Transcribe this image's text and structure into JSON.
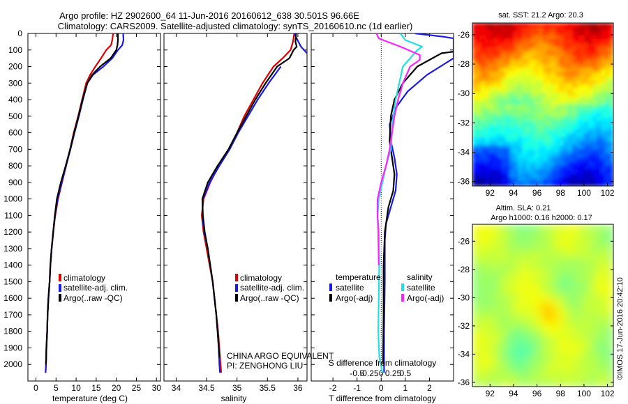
{
  "header": {
    "line1": "Argo profile: HZ 2902600_64 11-Jun-2016 20160612_638 30.501S 96.66E",
    "line2": "Climatology: CARS2009. Satellite-adjusted climatology: synTS_20160610.nc (1d earlier)"
  },
  "credit": "©IMOS 17-Jun-2016 20:42:10",
  "annotations": {
    "program": "CHINA ARGO EQUIVALENT",
    "pi": "PI: ZENGHONG LIU"
  },
  "colors": {
    "climatology": "#e00000",
    "satellite": "#1a1ae6",
    "argo": "#000000",
    "sat_salinity": "#22e0e0",
    "argo_salinity": "#ff22ff"
  },
  "chart_data": [
    {
      "type": "line",
      "panel": "temperature",
      "xlabel": "temperature (deg C)",
      "ylabel": "",
      "xlim": [
        -2,
        31
      ],
      "ylim": [
        2100,
        0
      ],
      "xticks": [
        0,
        5,
        10,
        15,
        20,
        25,
        30
      ],
      "yticks": [
        0,
        100,
        200,
        300,
        400,
        500,
        600,
        700,
        800,
        900,
        1000,
        1100,
        1200,
        1300,
        1400,
        1500,
        1600,
        1700,
        1800,
        1900,
        2000
      ],
      "legend": [
        "climatology",
        "satellite-adj. clim.",
        "Argo(..raw -QC)"
      ],
      "series": [
        {
          "name": "climatology",
          "color": "#e00000",
          "points": [
            [
              19.2,
              0
            ],
            [
              19.0,
              40
            ],
            [
              18.7,
              70
            ],
            [
              17.5,
              100
            ],
            [
              16.2,
              150
            ],
            [
              14.8,
              200
            ],
            [
              13.5,
              250
            ],
            [
              12.5,
              300
            ],
            [
              11.5,
              400
            ],
            [
              10.5,
              500
            ],
            [
              9.4,
              600
            ],
            [
              8.5,
              700
            ],
            [
              7.5,
              800
            ],
            [
              6.5,
              900
            ],
            [
              5.5,
              1000
            ],
            [
              4.8,
              1100
            ],
            [
              4.3,
              1200
            ],
            [
              3.9,
              1300
            ],
            [
              3.6,
              1400
            ],
            [
              3.4,
              1500
            ],
            [
              3.1,
              1600
            ],
            [
              2.9,
              1700
            ],
            [
              2.8,
              1800
            ],
            [
              2.6,
              1900
            ],
            [
              2.5,
              2000
            ],
            [
              2.4,
              2050
            ]
          ]
        },
        {
          "name": "satellite-adj. clim.",
          "color": "#1a1ae6",
          "points": [
            [
              21.7,
              0
            ],
            [
              21.8,
              40
            ],
            [
              21.5,
              70
            ],
            [
              20.4,
              100
            ],
            [
              19.0,
              150
            ],
            [
              16.8,
              200
            ],
            [
              14.2,
              250
            ],
            [
              12.8,
              300
            ],
            [
              11.7,
              400
            ],
            [
              10.7,
              500
            ],
            [
              9.6,
              600
            ],
            [
              8.6,
              700
            ],
            [
              7.5,
              800
            ],
            [
              6.4,
              900
            ],
            [
              5.4,
              1000
            ],
            [
              4.7,
              1100
            ],
            [
              4.3,
              1200
            ],
            [
              3.9,
              1300
            ],
            [
              3.6,
              1400
            ],
            [
              3.4,
              1500
            ],
            [
              3.1,
              1600
            ],
            [
              2.9,
              1700
            ],
            [
              2.8,
              1800
            ],
            [
              2.6,
              1900
            ],
            [
              2.5,
              2000
            ],
            [
              2.4,
              2050
            ]
          ]
        },
        {
          "name": "Argo(..raw -QC)",
          "color": "#000000",
          "points": [
            [
              20.4,
              0
            ],
            [
              20.4,
              40
            ],
            [
              20.3,
              70
            ],
            [
              20.0,
              100
            ],
            [
              18.6,
              150
            ],
            [
              16.0,
              200
            ],
            [
              14.0,
              250
            ],
            [
              12.8,
              300
            ],
            [
              11.6,
              400
            ],
            [
              10.6,
              500
            ],
            [
              9.5,
              600
            ],
            [
              8.5,
              700
            ],
            [
              7.4,
              800
            ],
            [
              6.2,
              900
            ],
            [
              5.2,
              1000
            ],
            [
              4.7,
              1100
            ],
            [
              4.3,
              1200
            ],
            [
              3.9,
              1300
            ],
            [
              3.6,
              1400
            ],
            [
              3.4,
              1500
            ],
            [
              3.1,
              1600
            ],
            [
              2.9,
              1700
            ],
            [
              2.8,
              1800
            ],
            [
              2.6,
              1900
            ],
            [
              2.5,
              2000
            ]
          ]
        }
      ]
    },
    {
      "type": "line",
      "panel": "salinity",
      "xlabel": "salinity",
      "ylabel": "",
      "xlim": [
        33.8,
        36.15
      ],
      "ylim": [
        2100,
        0
      ],
      "xticks": [
        34,
        34.5,
        35,
        35.5,
        36
      ],
      "xticklabels": [
        "34",
        "34.5",
        "35",
        "35.5",
        "36"
      ],
      "legend": [
        "climatology",
        "satellite-adj. clim.",
        "Argo(..raw -QC)"
      ],
      "series": [
        {
          "name": "climatology",
          "color": "#e00000",
          "points": [
            [
              35.94,
              0
            ],
            [
              35.92,
              50
            ],
            [
              35.88,
              100
            ],
            [
              35.75,
              150
            ],
            [
              35.6,
              200
            ],
            [
              35.42,
              300
            ],
            [
              35.27,
              400
            ],
            [
              35.12,
              500
            ],
            [
              35.0,
              600
            ],
            [
              34.87,
              700
            ],
            [
              34.7,
              800
            ],
            [
              34.56,
              900
            ],
            [
              34.45,
              1000
            ],
            [
              34.42,
              1100
            ],
            [
              34.45,
              1200
            ],
            [
              34.5,
              1300
            ],
            [
              34.55,
              1400
            ],
            [
              34.6,
              1500
            ],
            [
              34.63,
              1600
            ],
            [
              34.66,
              1700
            ],
            [
              34.69,
              1800
            ],
            [
              34.71,
              1900
            ],
            [
              34.73,
              2000
            ],
            [
              34.74,
              2050
            ]
          ]
        },
        {
          "name": "satellite-adj. clim.",
          "color": "#1a1ae6",
          "points": [
            [
              35.94,
              0
            ],
            [
              35.98,
              30
            ],
            [
              36.05,
              80
            ],
            [
              36.15,
              120
            ]
          ]
        },
        {
          "name": "satellite-adj. clim.",
          "color": "#1a1ae6",
          "points": [
            [
              35.72,
              200
            ],
            [
              35.52,
              300
            ],
            [
              35.34,
              400
            ],
            [
              35.18,
              500
            ],
            [
              35.02,
              600
            ],
            [
              34.88,
              700
            ],
            [
              34.71,
              800
            ],
            [
              34.55,
              900
            ],
            [
              34.44,
              1000
            ],
            [
              34.43,
              1100
            ],
            [
              34.46,
              1200
            ],
            [
              34.52,
              1300
            ],
            [
              34.56,
              1400
            ],
            [
              34.6,
              1500
            ],
            [
              34.63,
              1600
            ],
            [
              34.66,
              1700
            ],
            [
              34.68,
              1800
            ],
            [
              34.7,
              1900
            ],
            [
              34.71,
              2000
            ],
            [
              34.72,
              2050
            ]
          ]
        },
        {
          "name": "Argo(..raw -QC)",
          "color": "#000000",
          "points": [
            [
              35.97,
              0
            ],
            [
              35.96,
              50
            ],
            [
              35.98,
              80
            ],
            [
              35.93,
              100
            ],
            [
              35.86,
              150
            ],
            [
              35.66,
              200
            ],
            [
              35.47,
              300
            ],
            [
              35.3,
              400
            ],
            [
              35.15,
              500
            ],
            [
              35.0,
              600
            ],
            [
              34.86,
              700
            ],
            [
              34.68,
              800
            ],
            [
              34.52,
              900
            ],
            [
              34.43,
              1000
            ],
            [
              34.44,
              1100
            ],
            [
              34.47,
              1200
            ],
            [
              34.52,
              1300
            ],
            [
              34.56,
              1400
            ],
            [
              34.6,
              1500
            ],
            [
              34.63,
              1600
            ],
            [
              34.66,
              1700
            ],
            [
              34.68,
              1800
            ],
            [
              34.7,
              1900
            ],
            [
              34.71,
              1960
            ]
          ]
        }
      ]
    },
    {
      "type": "line",
      "panel": "difference",
      "xlabel": "T difference from climatology",
      "xlabel2": "S difference from climatology",
      "ylabel": "",
      "xlim": [
        -2.9,
        3.0
      ],
      "ylim": [
        2100,
        0
      ],
      "xticks": [
        -2,
        -1,
        0,
        1,
        2
      ],
      "xticklabels": [
        "-2",
        "-1",
        "0",
        "1",
        "2"
      ],
      "s_ticks": [
        -0.5,
        -0.25,
        0,
        0.25,
        0.5
      ],
      "s_ticklabels": [
        "-0.5",
        "-0.25",
        "0",
        "0.25",
        "0.5"
      ],
      "legend": {
        "temperature_title": "temperature",
        "salinity_title": "salinity",
        "items": [
          "satellite",
          "Argo(-adj)",
          "satellite",
          "Argo(-adj)"
        ]
      },
      "series": [
        {
          "name": "satellite",
          "color": "#1a1ae6",
          "points": [
            [
              1.4,
              0
            ],
            [
              2.6,
              20
            ],
            [
              3.0,
              30
            ],
            [
              3.0,
              150
            ],
            [
              1.9,
              250
            ],
            [
              1.1,
              350
            ],
            [
              0.6,
              450
            ],
            [
              0.35,
              550
            ],
            [
              0.4,
              650
            ],
            [
              0.55,
              750
            ],
            [
              0.65,
              850
            ],
            [
              0.6,
              950
            ],
            [
              0.4,
              1050
            ],
            [
              0.2,
              1150
            ],
            [
              0.15,
              1250
            ],
            [
              0.15,
              1500
            ],
            [
              0.12,
              1800
            ],
            [
              0.12,
              2050
            ]
          ]
        },
        {
          "name": "Argo(-adj)",
          "color": "#000000",
          "points": [
            [
              3.0,
              110
            ],
            [
              2.5,
              120
            ],
            [
              1.5,
              200
            ],
            [
              0.9,
              300
            ],
            [
              0.55,
              400
            ],
            [
              0.4,
              500
            ],
            [
              0.35,
              650
            ],
            [
              0.45,
              750
            ],
            [
              0.55,
              850
            ],
            [
              0.5,
              950
            ],
            [
              0.3,
              1050
            ],
            [
              0.15,
              1200
            ],
            [
              0.1,
              1400
            ],
            [
              0.1,
              1700
            ],
            [
              0.08,
              2000
            ]
          ]
        },
        {
          "name": "satellite",
          "color": "#22e0e0",
          "points": [
            [
              0.8,
              0
            ],
            [
              1.0,
              40
            ],
            [
              1.7,
              80
            ],
            [
              1.5,
              100
            ],
            [
              0.9,
              200
            ],
            [
              0.75,
              300
            ],
            [
              0.6,
              400
            ],
            [
              0.5,
              500
            ],
            [
              0.45,
              600
            ],
            [
              0.4,
              700
            ],
            [
              0.2,
              800
            ],
            [
              0.05,
              900
            ],
            [
              -0.1,
              1000
            ],
            [
              -0.15,
              1100
            ],
            [
              -0.1,
              1200
            ],
            [
              -0.08,
              1400
            ],
            [
              -0.1,
              1600
            ],
            [
              -0.12,
              1800
            ],
            [
              -0.08,
              1950
            ],
            [
              0.05,
              2050
            ]
          ]
        },
        {
          "name": "Argo(-adj)",
          "color": "#ff22ff",
          "points": [
            [
              -0.2,
              0
            ],
            [
              -0.1,
              30
            ],
            [
              0.8,
              80
            ],
            [
              1.6,
              130
            ],
            [
              1.6,
              160
            ],
            [
              1.2,
              200
            ],
            [
              0.9,
              300
            ],
            [
              0.7,
              400
            ],
            [
              0.55,
              500
            ],
            [
              0.45,
              600
            ],
            [
              0.35,
              700
            ],
            [
              0.2,
              800
            ],
            [
              0.0,
              900
            ],
            [
              -0.15,
              1000
            ],
            [
              -0.15,
              1100
            ],
            [
              -0.12,
              1200
            ],
            [
              -0.1,
              1400
            ]
          ]
        }
      ]
    },
    {
      "type": "heatmap",
      "panel": "sst-map",
      "title": "sat. SST: 21.2 Argo: 20.3",
      "xlim": [
        90.5,
        102.5
      ],
      "ylim": [
        -36.3,
        -25.2
      ],
      "xticks": [
        92,
        94,
        96,
        98,
        100,
        102
      ],
      "yticks": [
        -26,
        -28,
        -30,
        -32,
        -34,
        -36
      ]
    },
    {
      "type": "heatmap",
      "panel": "sla-map",
      "title": "Altim. SLA: 0.21",
      "subtitle": "Argo h1000: 0.16 h2000: 0.17",
      "xlim": [
        90.5,
        102.5
      ],
      "ylim": [
        -36.3,
        -24.8
      ],
      "xticks": [
        92,
        94,
        96,
        98,
        100,
        102
      ],
      "yticks": [
        -26,
        -28,
        -30,
        -32,
        -34,
        -36
      ]
    }
  ]
}
